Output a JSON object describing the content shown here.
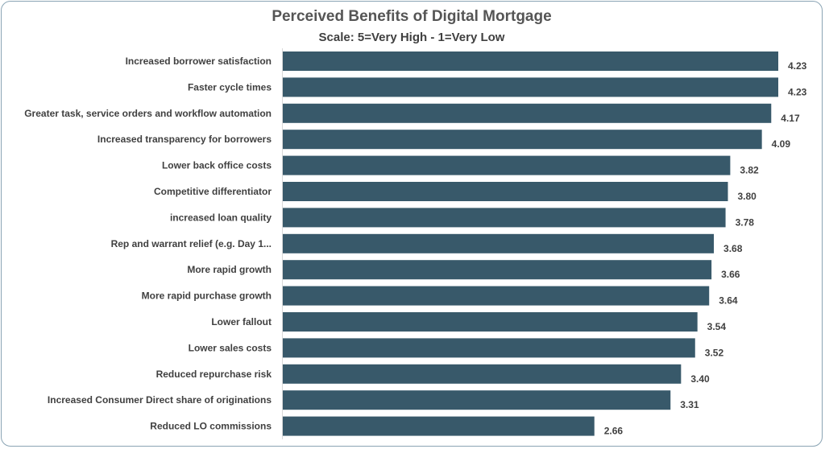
{
  "chart_data": {
    "type": "bar",
    "orientation": "horizontal",
    "title": "Perceived Benefits of Digital Mortgage",
    "subtitle": "Scale:  5=Very High - 1=Very Low",
    "categories": [
      "Increased borrower satisfaction",
      "Faster cycle times",
      "Greater task, service orders and workflow automation",
      "Increased transparency for borrowers",
      "Lower back office costs",
      "Competitive differentiator",
      "increased loan quality",
      "Rep and warrant relief (e.g. Day 1...",
      "More rapid growth",
      "More rapid purchase growth",
      "Lower fallout",
      "Lower sales costs",
      "Reduced repurchase risk",
      "Increased Consumer Direct share of originations",
      "Reduced LO commissions"
    ],
    "values": [
      4.23,
      4.23,
      4.17,
      4.09,
      3.82,
      3.8,
      3.78,
      3.68,
      3.66,
      3.64,
      3.54,
      3.52,
      3.4,
      3.31,
      2.66
    ],
    "value_labels": [
      "4.23",
      "4.23",
      "4.17",
      "4.09",
      "3.82",
      "3.80",
      "3.78",
      "3.68",
      "3.66",
      "3.64",
      "3.54",
      "3.52",
      "3.40",
      "3.31",
      "2.66"
    ],
    "xlim": [
      0,
      4.23
    ],
    "grid": false,
    "legend": "none",
    "bar_color": "#38596a"
  }
}
